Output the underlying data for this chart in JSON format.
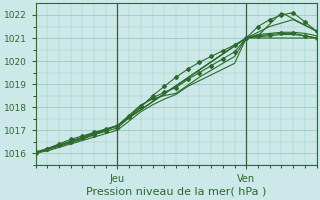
{
  "xlabel": "Pression niveau de la mer( hPa )",
  "bg_color": "#cce8e8",
  "plot_bg_color": "#cce8e8",
  "grid_color": "#99ccbb",
  "line_color": "#2d6a2d",
  "ylim": [
    1015.5,
    1022.5
  ],
  "xlim": [
    0,
    96
  ],
  "xtick_positions": [
    28,
    72
  ],
  "xticklabels": [
    "Jeu",
    "Ven"
  ],
  "yticks": [
    1016,
    1017,
    1018,
    1019,
    1020,
    1021,
    1022
  ],
  "font_color": "#2d6a2d",
  "lines": [
    {
      "x": [
        0,
        4,
        8,
        12,
        16,
        20,
        24,
        28,
        32,
        36,
        40,
        44,
        48,
        52,
        56,
        60,
        64,
        68,
        72,
        76,
        80,
        84,
        88,
        92,
        96
      ],
      "y": [
        1016.0,
        1016.2,
        1016.4,
        1016.6,
        1016.75,
        1016.9,
        1017.05,
        1017.2,
        1017.6,
        1018.05,
        1018.4,
        1018.65,
        1018.85,
        1019.2,
        1019.5,
        1019.8,
        1020.1,
        1020.4,
        1021.0,
        1021.1,
        1021.15,
        1021.2,
        1021.2,
        1021.1,
        1021.0
      ],
      "marker": true
    },
    {
      "x": [
        0,
        4,
        8,
        12,
        16,
        20,
        24,
        28,
        32,
        36,
        40,
        44,
        48,
        52,
        56,
        60,
        64,
        68,
        72,
        76,
        80,
        84,
        88,
        92,
        96
      ],
      "y": [
        1016.05,
        1016.2,
        1016.35,
        1016.5,
        1016.65,
        1016.8,
        1016.95,
        1017.1,
        1017.55,
        1018.0,
        1018.5,
        1018.9,
        1019.3,
        1019.65,
        1019.95,
        1020.2,
        1020.45,
        1020.7,
        1021.0,
        1021.5,
        1021.8,
        1022.0,
        1022.1,
        1021.7,
        1021.3
      ],
      "marker": true
    },
    {
      "x": [
        0,
        4,
        8,
        12,
        16,
        20,
        24,
        28,
        32,
        36,
        40,
        44,
        48,
        52,
        56,
        60,
        64,
        68,
        72,
        76,
        80,
        84,
        88,
        92,
        96
      ],
      "y": [
        1016.05,
        1016.15,
        1016.3,
        1016.45,
        1016.6,
        1016.8,
        1017.0,
        1017.2,
        1017.65,
        1018.1,
        1018.35,
        1018.5,
        1018.6,
        1018.95,
        1019.3,
        1019.6,
        1019.9,
        1020.2,
        1021.0,
        1021.15,
        1021.2,
        1021.25,
        1021.25,
        1021.2,
        1021.1
      ],
      "marker": false
    },
    {
      "x": [
        0,
        4,
        8,
        12,
        16,
        20,
        24,
        28,
        32,
        36,
        40,
        44,
        48,
        52,
        56,
        60,
        64,
        68,
        72,
        76,
        80,
        84,
        88,
        92,
        96
      ],
      "y": [
        1016.0,
        1016.1,
        1016.25,
        1016.4,
        1016.55,
        1016.7,
        1016.85,
        1017.0,
        1017.4,
        1017.8,
        1018.1,
        1018.35,
        1018.55,
        1018.9,
        1019.15,
        1019.4,
        1019.65,
        1019.9,
        1021.0,
        1021.05,
        1021.1,
        1021.15,
        1021.15,
        1021.1,
        1021.0
      ],
      "marker": false
    },
    {
      "x": [
        0,
        28,
        72,
        96
      ],
      "y": [
        1016.0,
        1017.2,
        1021.0,
        1021.0
      ],
      "marker": false
    },
    {
      "x": [
        0,
        28,
        72,
        80,
        88,
        96
      ],
      "y": [
        1016.0,
        1017.2,
        1021.0,
        1021.5,
        1021.8,
        1021.3
      ],
      "marker": false
    },
    {
      "x": [
        0,
        28,
        72,
        76,
        84,
        96
      ],
      "y": [
        1016.0,
        1017.2,
        1021.0,
        1021.1,
        1022.1,
        1021.3
      ],
      "marker": false
    }
  ]
}
